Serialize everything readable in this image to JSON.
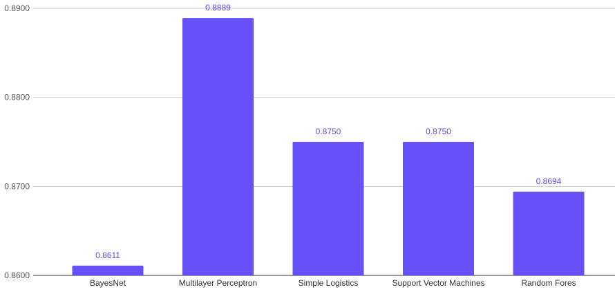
{
  "chart_data": {
    "type": "bar",
    "categories": [
      "BayesNet",
      "Multilayer Perceptron",
      "Simple Logistics",
      "Support Vector Machines",
      "Random Fores"
    ],
    "values": [
      0.8611,
      0.8889,
      0.875,
      0.875,
      0.8694
    ],
    "data_labels": [
      "0.8611",
      "0.8889",
      "0.8750",
      "0.8750",
      "0.8694"
    ],
    "y_ticks": [
      "0.8600",
      "0.8700",
      "0.8800",
      "0.8900"
    ],
    "ylim": [
      0.86,
      0.89
    ],
    "grid": true,
    "legend": "none",
    "colors": {
      "bar": "#6650f8",
      "label": "#5b4cf0",
      "grid": "#cccccc"
    }
  }
}
